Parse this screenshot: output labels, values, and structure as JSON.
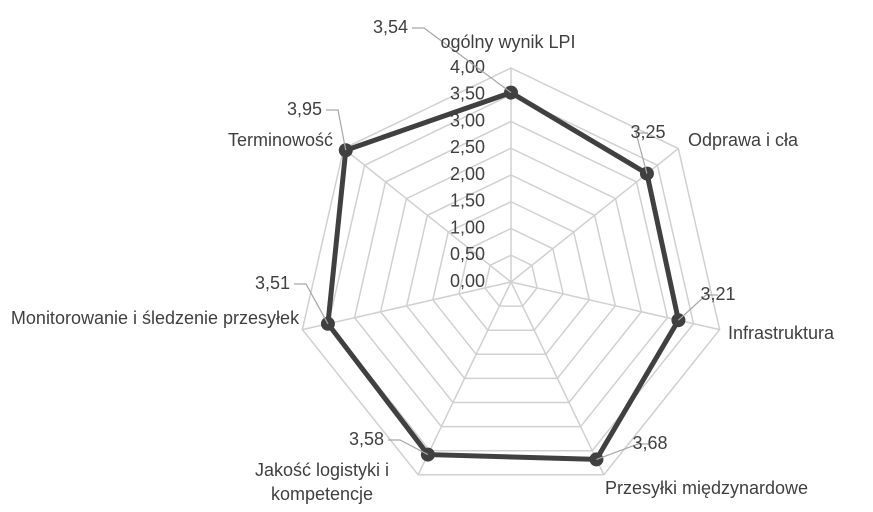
{
  "chart_data": {
    "type": "radar",
    "categories": [
      "ogólny wynik LPI",
      "Odprawa i cła",
      "Infrastruktura",
      "Przesyłki międzynardowe",
      "Jakość logistyki i kompetencje",
      "Monitorowanie i śledzenie przesyłek",
      "Terminowość"
    ],
    "values": [
      3.54,
      3.25,
      3.21,
      3.68,
      3.58,
      3.51,
      3.95
    ],
    "value_labels": [
      "3,54",
      "3,25",
      "3,21",
      "3,68",
      "3,58",
      "3,51",
      "3,95"
    ],
    "color": "#404040",
    "ylim": [
      0,
      4
    ],
    "yticks": [
      {
        "value": 0,
        "label": "0,00"
      },
      {
        "value": 0.5,
        "label": "0,50"
      },
      {
        "value": 1,
        "label": "1,00"
      },
      {
        "value": 1.5,
        "label": "1,50"
      },
      {
        "value": 2,
        "label": "2,00"
      },
      {
        "value": 2.5,
        "label": "2,50"
      },
      {
        "value": 3,
        "label": "3,00"
      },
      {
        "value": 3.5,
        "label": "3,50"
      },
      {
        "value": 4,
        "label": "4,00"
      }
    ],
    "grid": true
  }
}
